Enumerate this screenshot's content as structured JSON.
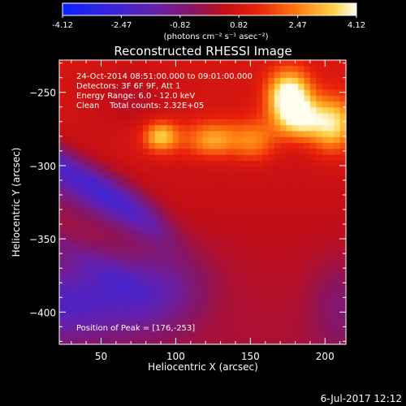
{
  "chart_data": {
    "type": "heatmap",
    "title": "Reconstructed RHESSI Image",
    "xlabel": "Heliocentric X (arcsec)",
    "ylabel": "Heliocentric Y (arcsec)",
    "xlim": [
      22,
      214
    ],
    "ylim": [
      -422,
      -228
    ],
    "xticks": [
      50,
      100,
      150,
      200
    ],
    "yticks": [
      -250,
      -300,
      -350,
      -400
    ],
    "colorbar": {
      "ticks": [
        "-4.12",
        "-2.47",
        "-0.82",
        "0.82",
        "2.47",
        "4.12"
      ],
      "range": [
        -4.12,
        4.12
      ],
      "label": "(photons cm⁻² s⁻¹ asec⁻²)"
    },
    "annotations": [
      "24-Oct-2014 08:51:00.000 to 09:01:00.000",
      "Detectors: 3F 6F 9F, Att 1",
      "Energy Range: 6.0 - 12.0 keV",
      "Clean    Total counts: 2.32E+05",
      "Position of Peak = [176,-253]"
    ],
    "peak": [
      176,
      -253
    ],
    "sources": [
      {
        "x": 176,
        "y": -253,
        "amp": 4.1,
        "sx": 10,
        "sy": 12
      },
      {
        "x": 185,
        "y": -268,
        "amp": 2.0,
        "sx": 10,
        "sy": 9
      },
      {
        "x": 205,
        "y": -272,
        "amp": 2.3,
        "sx": 10,
        "sy": 14
      },
      {
        "x": 90,
        "y": -280,
        "amp": 2.3,
        "sx": 8,
        "sy": 7
      },
      {
        "x": 125,
        "y": -283,
        "amp": 1.6,
        "sx": 11,
        "sy": 8
      },
      {
        "x": 152,
        "y": -285,
        "amp": 1.3,
        "sx": 10,
        "sy": 9
      }
    ]
  },
  "footer": {
    "date": "6-Jul-2017 12:12"
  }
}
